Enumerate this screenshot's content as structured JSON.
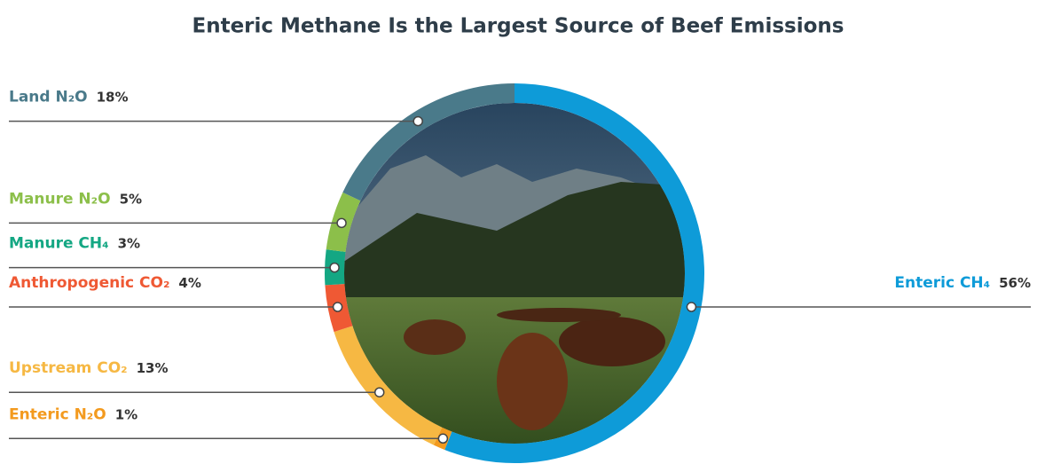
{
  "chart_data": {
    "type": "donut",
    "title": "Enteric Methane Is the Largest Source of Beef Emissions",
    "categories": [
      "Enteric CH₄",
      "Enteric N₂O",
      "Upstream CO₂",
      "Anthropogenic CO₂",
      "Manure CH₄",
      "Manure N₂O",
      "Land N₂O"
    ],
    "values": [
      56,
      1,
      13,
      4,
      3,
      5,
      18
    ],
    "value_labels": [
      "56%",
      "1%",
      "13%",
      "4%",
      "3%",
      "5%",
      "18%"
    ],
    "colors": [
      "#0e9bd8",
      "#f39a1e",
      "#f6b843",
      "#ef5934",
      "#14a783",
      "#8cbf4a",
      "#4a7a8a"
    ]
  }
}
